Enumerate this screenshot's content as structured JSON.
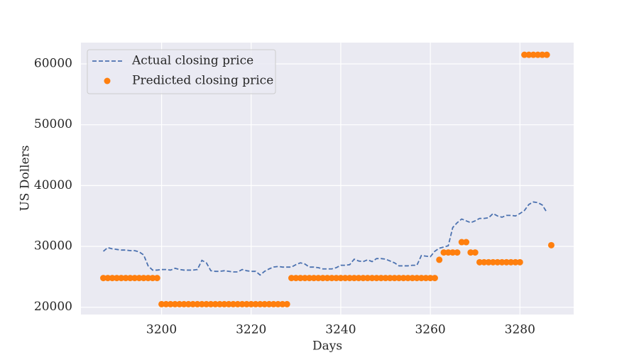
{
  "chart_data": {
    "type": "line",
    "xlabel": "Days",
    "ylabel": "US Dollers",
    "x": [
      3187,
      3188,
      3189,
      3190,
      3191,
      3192,
      3193,
      3194,
      3195,
      3196,
      3197,
      3198,
      3199,
      3200,
      3201,
      3202,
      3203,
      3204,
      3205,
      3206,
      3207,
      3208,
      3209,
      3210,
      3211,
      3212,
      3213,
      3214,
      3215,
      3216,
      3217,
      3218,
      3219,
      3220,
      3221,
      3222,
      3223,
      3224,
      3225,
      3226,
      3227,
      3228,
      3229,
      3230,
      3231,
      3232,
      3233,
      3234,
      3235,
      3236,
      3237,
      3238,
      3239,
      3240,
      3241,
      3242,
      3243,
      3244,
      3245,
      3246,
      3247,
      3248,
      3249,
      3250,
      3251,
      3252,
      3253,
      3254,
      3255,
      3256,
      3257,
      3258,
      3259,
      3260,
      3261,
      3262,
      3263,
      3264,
      3265,
      3266,
      3267,
      3268,
      3269,
      3270,
      3271,
      3272,
      3273,
      3274,
      3275,
      3276,
      3277,
      3278,
      3279,
      3280,
      3281,
      3282,
      3283,
      3284,
      3285,
      3286,
      3287
    ],
    "series": [
      {
        "name": "Actual closing price",
        "type": "line",
        "color": "#4c72b0",
        "values": [
          29200,
          29800,
          29600,
          29500,
          29400,
          29400,
          29300,
          29300,
          29100,
          28600,
          26800,
          26100,
          26100,
          26200,
          26200,
          26100,
          26400,
          26200,
          26100,
          26100,
          26100,
          26200,
          27700,
          27300,
          26000,
          25900,
          25900,
          26000,
          25900,
          25800,
          25800,
          26200,
          26000,
          25900,
          25900,
          25300,
          25900,
          26300,
          26600,
          26700,
          26600,
          26600,
          26600,
          27000,
          27300,
          27100,
          26600,
          26600,
          26500,
          26300,
          26300,
          26300,
          26500,
          26900,
          26900,
          27000,
          27900,
          27600,
          27500,
          27800,
          27500,
          28000,
          28000,
          27900,
          27600,
          27300,
          26800,
          26800,
          26800,
          26900,
          26900,
          28500,
          28400,
          28300,
          29200,
          29700,
          29900,
          30100,
          33100,
          33900,
          34500,
          34200,
          33900,
          34200,
          34600,
          34600,
          34700,
          35400,
          35000,
          34800,
          35100,
          35100,
          35000,
          35400,
          35900,
          36900,
          37300,
          37200,
          36800,
          35600,
          null
        ]
      },
      {
        "name": "Predicted closing price",
        "type": "scatter",
        "color": "#ff7f0e",
        "values": [
          24800,
          24800,
          24800,
          24800,
          24800,
          24800,
          24800,
          24800,
          24800,
          24800,
          24800,
          24800,
          24800,
          20500,
          20500,
          20500,
          20500,
          20500,
          20500,
          20500,
          20500,
          20500,
          20500,
          20500,
          20500,
          20500,
          20500,
          20500,
          20500,
          20500,
          20500,
          20500,
          20500,
          20500,
          20500,
          20500,
          20500,
          20500,
          20500,
          20500,
          20500,
          20500,
          24800,
          24800,
          24800,
          24800,
          24800,
          24800,
          24800,
          24800,
          24800,
          24800,
          24800,
          24800,
          24800,
          24800,
          24800,
          24800,
          24800,
          24800,
          24800,
          24800,
          24800,
          24800,
          24800,
          24800,
          24800,
          24800,
          24800,
          24800,
          24800,
          24800,
          24800,
          24800,
          24800,
          27800,
          29000,
          29000,
          29000,
          29000,
          30700,
          30700,
          29000,
          29000,
          27400,
          27400,
          27400,
          27400,
          27400,
          27400,
          27400,
          27400,
          27400,
          27400,
          61500,
          61500,
          61500,
          61500,
          61500,
          61500,
          30200
        ]
      }
    ],
    "xlim": [
      3182,
      3292
    ],
    "xticks": [
      3200,
      3220,
      3240,
      3260,
      3280
    ],
    "ylim": [
      18800,
      63500
    ],
    "yticks": [
      20000,
      30000,
      40000,
      50000,
      60000
    ],
    "grid": true,
    "legend": "upper left"
  }
}
